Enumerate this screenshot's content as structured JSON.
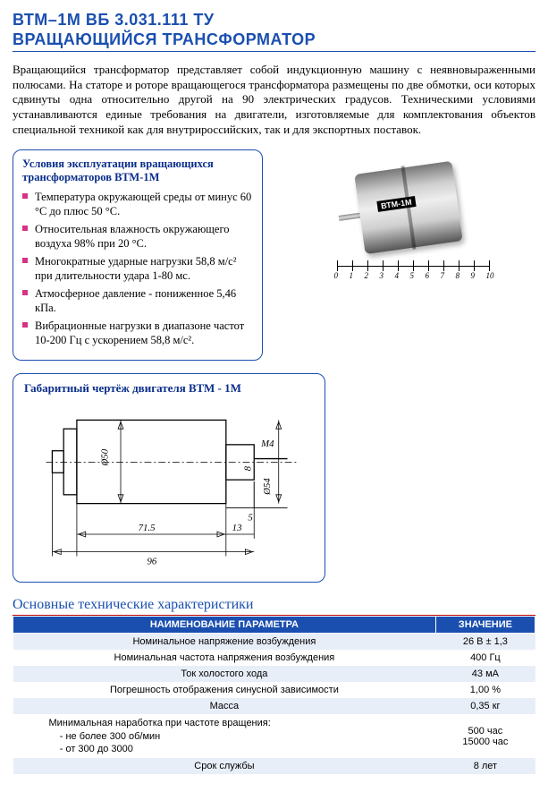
{
  "title_line1": "ВТМ–1М ВБ 3.031.111 ТУ",
  "title_line2": "ВРАЩАЮЩИЙСЯ ТРАНСФОРМАТОР",
  "intro": "Вращающийся трансформатор представляет собой индукционную машину с неявновыраженными полюсами. На статоре и роторе вращающегося трансформатора размещены по две обмотки, оси которых сдвинуты одна относительно другой на 90 электрических градусов. Техническими условиями устанавливаются единые требования на двигатели, изготовляемые для комплектования объектов специальной техникой как для внутрироссийских, так и для экспортных поставок.",
  "conditions": {
    "title": "Условия эксплуатации вращающихся трансформаторов ВТМ-1М",
    "items": [
      "Температура окружающей среды от минус 60 °С до плюс 50 °С.",
      "Относительная влажность окружающего воздуха 98% при 20 °С.",
      "Многократные ударные нагрузки 58,8 м/с² при длительности удара 1-80 мс.",
      "Атмосферное давление - пониженное 5,46 кПа.",
      "Вибрационные нагрузки в диапазоне частот 10-200 Гц с ускорением 58,8 м/с²."
    ]
  },
  "photo_label": "ВТМ-1М",
  "ruler_marks": [
    "0",
    "1",
    "2",
    "3",
    "4",
    "5",
    "6",
    "7",
    "8",
    "9",
    "10"
  ],
  "drawing": {
    "title": "Габаритный чертёж двигателя ВТМ - 1М",
    "dims": {
      "d50": "Ø50",
      "d54": "Ø54",
      "m4": "М4",
      "l8": "8",
      "l5": "5",
      "l71_5": "71.5",
      "l13": "13",
      "l96": "96"
    }
  },
  "specs_title": "Основные технические характеристики",
  "specs": {
    "head_param": "НАИМЕНОВАНИЕ ПАРАМЕТРА",
    "head_value": "ЗНАЧЕНИЕ",
    "rows": [
      {
        "param": "Номинальное напряжение возбуждения",
        "value": "26 В ± 1,3"
      },
      {
        "param": "Номинальная частота напряжения возбуждения",
        "value": "400 Гц"
      },
      {
        "param": "Ток холостого хода",
        "value": "43 мА"
      },
      {
        "param": "Погрешность отображения синусной зависимости",
        "value": "1,00 %"
      },
      {
        "param": "Масса",
        "value": "0,35 кг"
      },
      {
        "param_multi": "Минимальная наработка при частоте вращения:\n    - не более 300 об/мин\n    - от 300 до 3000",
        "value_multi": "500 час\n15000 час"
      },
      {
        "param": "Срок службы",
        "value": "8 лет"
      }
    ]
  },
  "colors": {
    "brand_blue": "#1a4fb0",
    "bullet_magenta": "#d63384",
    "row_alt": "#e8eef8",
    "red_rule": "#bb0000"
  }
}
